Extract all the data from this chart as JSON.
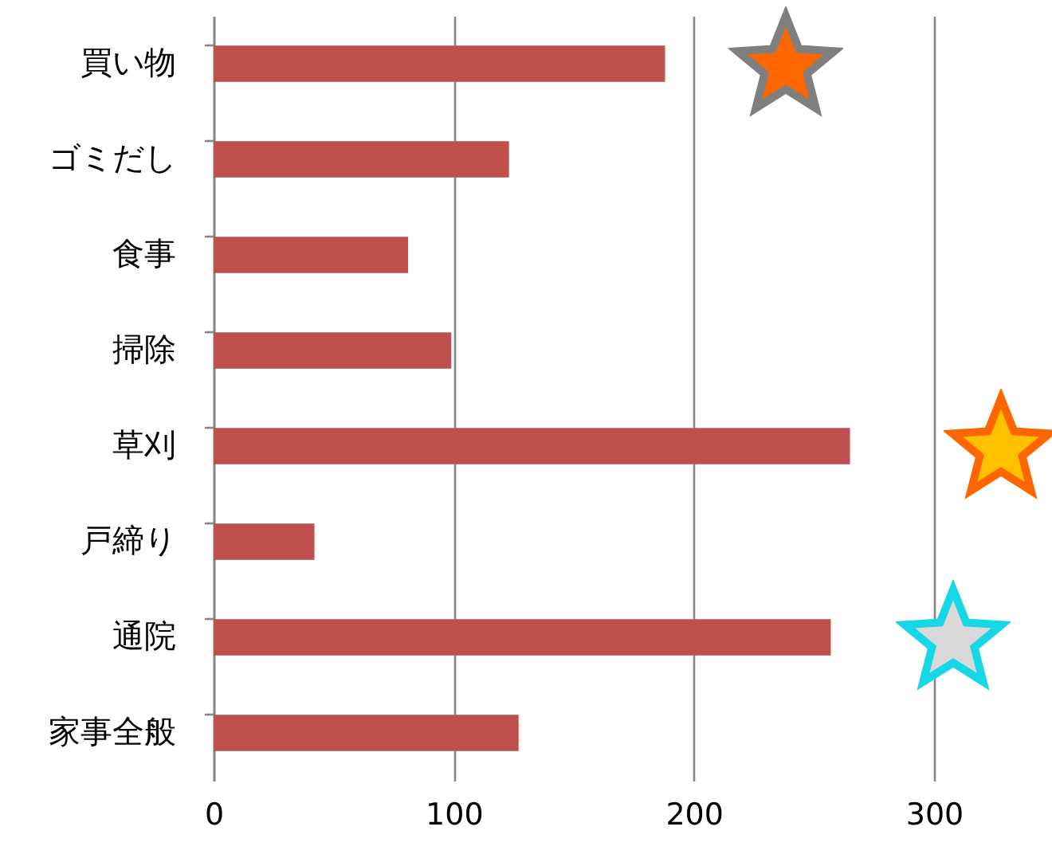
{
  "chart_data": {
    "type": "bar",
    "orientation": "horizontal",
    "categories": [
      "買い物",
      "ゴミだし",
      "食事",
      "掃除",
      "草刈",
      "戸締り",
      "通院",
      "家事全般"
    ],
    "values": [
      188,
      123,
      81,
      99,
      265,
      42,
      257,
      127
    ],
    "color": "#c0504d",
    "xlim": [
      0,
      300
    ],
    "xticks": [
      0,
      100,
      200,
      300
    ],
    "grid": "x"
  }
}
